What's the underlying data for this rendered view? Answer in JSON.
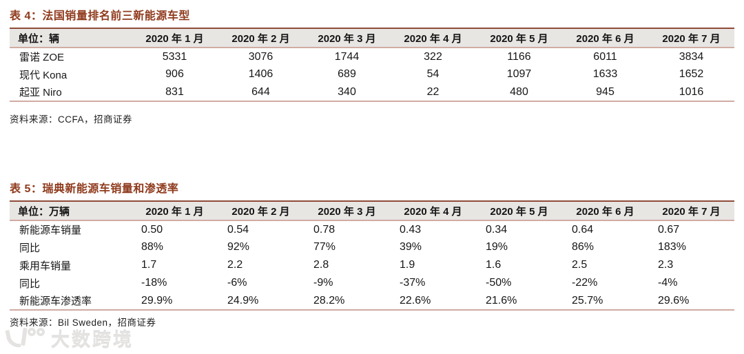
{
  "colors": {
    "accent_title": "#8f3a1c",
    "rule_dark": "#8e4a38",
    "rule_light": "#d0aba2",
    "header_bg": "#e8e6e3",
    "watermark": "#e2e0de"
  },
  "table4": {
    "title": "表 4：法国销量排名前三新能源车型",
    "unit_header": "单位：辆",
    "columns": [
      "2020 年 1 月",
      "2020 年 2 月",
      "2020 年 3 月",
      "2020 年 4 月",
      "2020 年 5 月",
      "2020 年 6 月",
      "2020 年 7 月"
    ],
    "rows": [
      {
        "label": "雷诺 ZOE",
        "values": [
          "5331",
          "3076",
          "1744",
          "322",
          "1166",
          "6011",
          "3834"
        ]
      },
      {
        "label": "现代 Kona",
        "values": [
          "906",
          "1406",
          "689",
          "54",
          "1097",
          "1633",
          "1652"
        ]
      },
      {
        "label": "起亚 Niro",
        "values": [
          "831",
          "644",
          "340",
          "22",
          "480",
          "945",
          "1016"
        ]
      }
    ],
    "source": "资料来源：CCFA，招商证券"
  },
  "table5": {
    "title": "表 5：瑞典新能源车销量和渗透率",
    "unit_header": "单位：万辆",
    "columns": [
      "2020 年 1 月",
      "2020 年 2 月",
      "2020 年 3 月",
      "2020 年 4 月",
      "2020 年 5 月",
      "2020 年 6 月",
      "2020 年 7 月"
    ],
    "rows": [
      {
        "label": "新能源车销量",
        "values": [
          "0.50",
          "0.54",
          "0.78",
          "0.43",
          "0.34",
          "0.64",
          "0.67"
        ]
      },
      {
        "label": "同比",
        "values": [
          "88%",
          "92%",
          "77%",
          "39%",
          "19%",
          "86%",
          "183%"
        ]
      },
      {
        "label": "乘用车销量",
        "values": [
          "1.7",
          "2.2",
          "2.8",
          "1.9",
          "1.6",
          "2.5",
          "2.3"
        ]
      },
      {
        "label": "同比",
        "values": [
          "-18%",
          "-6%",
          "-9%",
          "-37%",
          "-50%",
          "-22%",
          "-4%"
        ]
      },
      {
        "label": "新能源车渗透率",
        "values": [
          "29.9%",
          "24.9%",
          "28.2%",
          "22.6%",
          "21.6%",
          "25.7%",
          "29.6%"
        ]
      }
    ],
    "source": "资料来源：Bil Sweden，招商证券"
  },
  "watermark": {
    "logo": "100",
    "text": "大数跨境"
  }
}
